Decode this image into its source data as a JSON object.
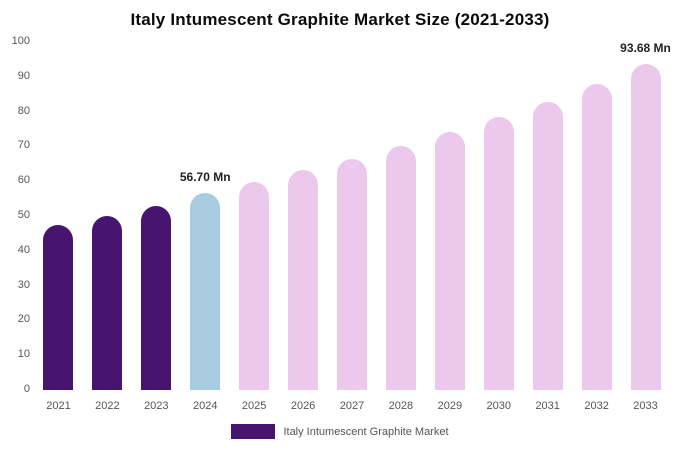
{
  "chart_data": {
    "type": "bar",
    "title": "Italy Intumescent Graphite Market Size (2021-2033)",
    "xlabel": "",
    "ylabel": "",
    "ylim": [
      0,
      100
    ],
    "yticks": [
      0,
      10,
      20,
      30,
      40,
      50,
      60,
      70,
      80,
      90,
      100
    ],
    "grid": false,
    "categories": [
      "2021",
      "2022",
      "2023",
      "2024",
      "2025",
      "2026",
      "2027",
      "2028",
      "2029",
      "2030",
      "2031",
      "2032",
      "2033"
    ],
    "values": [
      47.4,
      50.1,
      53.0,
      56.7,
      59.9,
      63.1,
      66.4,
      70.2,
      74.2,
      78.4,
      82.9,
      87.9,
      93.68
    ],
    "bar_colors": [
      "#471570",
      "#471570",
      "#471570",
      "#a7cce2",
      "#ecc9ec",
      "#ecc9ec",
      "#ecc9ec",
      "#ecc9ec",
      "#ecc9ec",
      "#ecc9ec",
      "#ecc9ec",
      "#ecc9ec",
      "#ecc9ec"
    ],
    "annotations": [
      {
        "index": 3,
        "text": "56.70 Mn"
      },
      {
        "index": 12,
        "text": "93.68 Mn"
      }
    ],
    "legend_position": "bottom",
    "legend": [
      {
        "label": "Italy Intumescent Graphite Market",
        "color": "#471570"
      }
    ]
  }
}
